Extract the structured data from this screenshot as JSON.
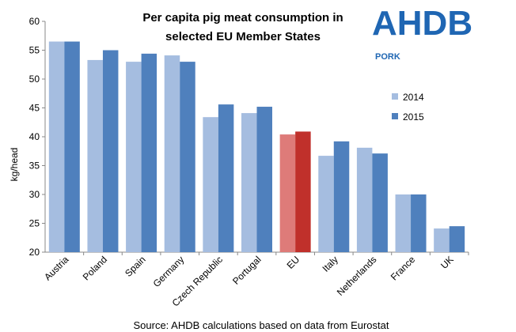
{
  "logo": {
    "main": "AHDB",
    "sub": "PORK",
    "color": "#1f66b3"
  },
  "source": "Source: AHDB calculations based on data from Eurostat",
  "chart_data": {
    "type": "bar",
    "title_lines": [
      "Per capita pig meat consumption in",
      "selected EU Member States"
    ],
    "ylabel": "kg/head",
    "xlabel": "",
    "ylim": [
      20,
      60
    ],
    "yticks": [
      20,
      25,
      30,
      35,
      40,
      45,
      50,
      55,
      60
    ],
    "grid": false,
    "legend": "right",
    "categories": [
      "Austria",
      "Poland",
      "Spain",
      "Germany",
      "Czech Republic",
      "Portugal",
      "EU",
      "Italy",
      "Netherlands",
      "France",
      "UK"
    ],
    "series": [
      {
        "name": "2014",
        "color": "#a5bde0",
        "values": [
          56.5,
          53.3,
          53.0,
          54.1,
          43.4,
          44.1,
          40.4,
          36.7,
          38.1,
          30.0,
          24.1
        ]
      },
      {
        "name": "2015",
        "color": "#4f80bd",
        "values": [
          56.5,
          55.0,
          54.4,
          53.0,
          45.6,
          45.2,
          40.9,
          39.2,
          37.1,
          30.0,
          24.5
        ]
      }
    ],
    "highlight": {
      "category": "EU",
      "colors": [
        "#de7b79",
        "#c0302b"
      ]
    }
  }
}
